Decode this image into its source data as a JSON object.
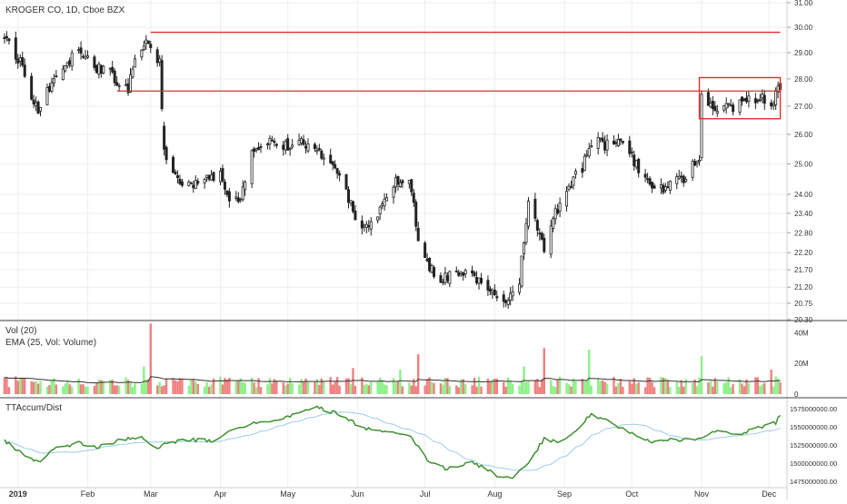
{
  "header": {
    "title": "KROGER CO, 1D, Cboe BZX"
  },
  "volume_panel": {
    "title": "Vol (20)",
    "ema_label": "EMA (25, Vol: Volume)"
  },
  "indicator_panel": {
    "title": "TTAccum/Dist"
  },
  "colors": {
    "up": "#2e9e3e",
    "down": "#222222",
    "support_line": "#e0312b",
    "vol_up": "#8ef08a",
    "vol_down": "#f08080",
    "ema": "#333333",
    "accum_line": "#3e9130",
    "accum_ma": "#9ccce8",
    "axis_text": "#333333",
    "grid": "#eeeeee"
  },
  "chart_data": [
    {
      "type": "candlestick",
      "title": "KROGER CO, 1D, Cboe BZX",
      "x_tick_labels": [
        "2019",
        "Feb",
        "Mar",
        "Apr",
        "May",
        "Jun",
        "Jul",
        "Aug",
        "Sep",
        "Oct",
        "Nov",
        "Dec"
      ],
      "y_tick_labels": [
        "31.00",
        "30.00",
        "29.00",
        "28.00",
        "27.00",
        "26.00",
        "25.00",
        "24.00",
        "23.40",
        "22.80",
        "22.20",
        "21.70",
        "21.20",
        "20.75",
        "20.30"
      ],
      "y_scale": "log",
      "ylim": [
        20.3,
        31.0
      ],
      "trend_path": [
        [
          "2018-12-26",
          29.6
        ],
        [
          "2019-01-02",
          28.6
        ],
        [
          "2019-01-07",
          27.1
        ],
        [
          "2019-01-10",
          26.9
        ],
        [
          "2019-01-15",
          27.6
        ],
        [
          "2019-01-22",
          28.3
        ],
        [
          "2019-01-28",
          29.3
        ],
        [
          "2019-02-04",
          28.4
        ],
        [
          "2019-02-11",
          28.2
        ],
        [
          "2019-02-19",
          27.5
        ],
        [
          "2019-02-22",
          28.8
        ],
        [
          "2019-02-28",
          29.4
        ],
        [
          "2019-03-05",
          28.7
        ],
        [
          "2019-03-07",
          25.4
        ],
        [
          "2019-03-12",
          24.5
        ],
        [
          "2019-03-19",
          24.2
        ],
        [
          "2019-03-26",
          24.6
        ],
        [
          "2019-04-01",
          24.6
        ],
        [
          "2019-04-05",
          23.9
        ],
        [
          "2019-04-10",
          23.9
        ],
        [
          "2019-04-15",
          25.5
        ],
        [
          "2019-04-22",
          25.8
        ],
        [
          "2019-04-30",
          25.6
        ],
        [
          "2019-05-06",
          25.7
        ],
        [
          "2019-05-13",
          25.6
        ],
        [
          "2019-05-20",
          25.0
        ],
        [
          "2019-05-27",
          24.0
        ],
        [
          "2019-06-03",
          22.8
        ],
        [
          "2019-06-10",
          23.4
        ],
        [
          "2019-06-17",
          24.3
        ],
        [
          "2019-06-24",
          24.6
        ],
        [
          "2019-06-28",
          22.7
        ],
        [
          "2019-07-05",
          21.5
        ],
        [
          "2019-07-12",
          21.5
        ],
        [
          "2019-07-19",
          21.6
        ],
        [
          "2019-07-26",
          21.3
        ],
        [
          "2019-08-02",
          21.0
        ],
        [
          "2019-08-06",
          20.9
        ],
        [
          "2019-08-12",
          21.4
        ],
        [
          "2019-08-16",
          23.8
        ],
        [
          "2019-08-23",
          22.3
        ],
        [
          "2019-08-28",
          23.4
        ],
        [
          "2019-09-04",
          24.4
        ],
        [
          "2019-09-09",
          24.9
        ],
        [
          "2019-09-13",
          25.8
        ],
        [
          "2019-09-20",
          25.6
        ],
        [
          "2019-09-27",
          25.7
        ],
        [
          "2019-10-04",
          24.8
        ],
        [
          "2019-10-11",
          24.1
        ],
        [
          "2019-10-18",
          24.3
        ],
        [
          "2019-10-25",
          24.6
        ],
        [
          "2019-10-31",
          25.2
        ],
        [
          "2019-11-01",
          27.6
        ],
        [
          "2019-11-06",
          27.0
        ],
        [
          "2019-11-13",
          26.9
        ],
        [
          "2019-11-20",
          27.1
        ],
        [
          "2019-11-27",
          27.3
        ],
        [
          "2019-12-02",
          27.0
        ],
        [
          "2019-12-05",
          27.7
        ]
      ],
      "horizontal_lines": [
        {
          "y": 29.8,
          "x_start": "2019-03-01",
          "x_end": "2019-12-06"
        },
        {
          "y": 27.55,
          "x_start": "2019-02-14",
          "x_end": "2019-12-06"
        }
      ],
      "box": {
        "x_start": "2019-10-31",
        "x_end": "2019-12-06",
        "y_low": 26.55,
        "y_high": 28.05
      }
    },
    {
      "type": "bar",
      "title": "Vol (20)",
      "series": [
        {
          "name": "EMA (25, Vol: Volume)",
          "type": "line"
        }
      ],
      "y_tick_labels": [
        "40M",
        "20M",
        "0"
      ],
      "ylim": [
        0,
        45
      ],
      "volume_baseline_millions": 8,
      "volume_spikes": [
        {
          "date": "2019-03-01",
          "value": 46
        },
        {
          "date": "2019-02-26",
          "value": 18
        },
        {
          "date": "2019-05-30",
          "value": 17
        },
        {
          "date": "2019-06-20",
          "value": 16
        },
        {
          "date": "2019-06-28",
          "value": 26
        },
        {
          "date": "2019-08-14",
          "value": 18
        },
        {
          "date": "2019-08-23",
          "value": 30
        },
        {
          "date": "2019-09-12",
          "value": 29
        },
        {
          "date": "2019-11-01",
          "value": 25
        },
        {
          "date": "2019-12-02",
          "value": 16
        }
      ]
    },
    {
      "type": "line",
      "title": "TTAccum/Dist",
      "y_tick_labels": [
        "1575000000.00",
        "1550000000.00",
        "1525000000.00",
        "1500000000.00",
        "1475000000.00"
      ],
      "ylim": [
        1470000000,
        1585000000
      ],
      "points": [
        [
          "2018-12-26",
          1531000000
        ],
        [
          "2019-01-04",
          1510000000
        ],
        [
          "2019-01-10",
          1502000000
        ],
        [
          "2019-01-18",
          1520000000
        ],
        [
          "2019-01-28",
          1528000000
        ],
        [
          "2019-02-06",
          1522000000
        ],
        [
          "2019-02-14",
          1530000000
        ],
        [
          "2019-02-25",
          1537000000
        ],
        [
          "2019-03-04",
          1520000000
        ],
        [
          "2019-03-08",
          1528000000
        ],
        [
          "2019-03-18",
          1532000000
        ],
        [
          "2019-03-29",
          1531000000
        ],
        [
          "2019-04-08",
          1548000000
        ],
        [
          "2019-04-17",
          1555000000
        ],
        [
          "2019-04-26",
          1558000000
        ],
        [
          "2019-05-06",
          1568000000
        ],
        [
          "2019-05-13",
          1578000000
        ],
        [
          "2019-05-23",
          1568000000
        ],
        [
          "2019-06-04",
          1548000000
        ],
        [
          "2019-06-14",
          1544000000
        ],
        [
          "2019-06-24",
          1540000000
        ],
        [
          "2019-07-02",
          1505000000
        ],
        [
          "2019-07-10",
          1492000000
        ],
        [
          "2019-07-22",
          1502000000
        ],
        [
          "2019-08-02",
          1483000000
        ],
        [
          "2019-08-09",
          1480000000
        ],
        [
          "2019-08-16",
          1500000000
        ],
        [
          "2019-08-23",
          1534000000
        ],
        [
          "2019-08-30",
          1528000000
        ],
        [
          "2019-09-06",
          1545000000
        ],
        [
          "2019-09-13",
          1567000000
        ],
        [
          "2019-09-20",
          1558000000
        ],
        [
          "2019-10-01",
          1540000000
        ],
        [
          "2019-10-10",
          1528000000
        ],
        [
          "2019-10-18",
          1532000000
        ],
        [
          "2019-10-30",
          1533000000
        ],
        [
          "2019-11-08",
          1544000000
        ],
        [
          "2019-11-18",
          1540000000
        ],
        [
          "2019-11-26",
          1548000000
        ],
        [
          "2019-12-04",
          1556000000
        ],
        [
          "2019-12-06",
          1568000000
        ]
      ]
    }
  ]
}
